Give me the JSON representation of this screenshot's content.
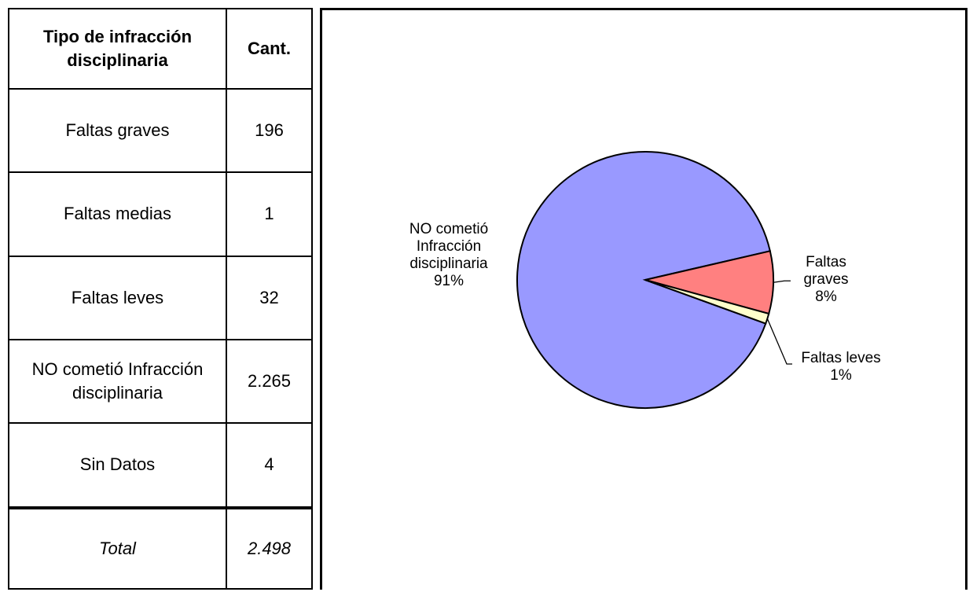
{
  "table": {
    "header": {
      "type": "Tipo de infracción disciplinaria",
      "count": "Cant."
    },
    "rows": [
      {
        "label": "Faltas graves",
        "value": "196"
      },
      {
        "label": "Faltas medias",
        "value": "1"
      },
      {
        "label": "Faltas leves",
        "value": "32"
      },
      {
        "label": "NO cometió Infracción disciplinaria",
        "value": "2.265"
      },
      {
        "label": "Sin Datos",
        "value": "4"
      }
    ],
    "total": {
      "label": "Total",
      "value": "2.498"
    }
  },
  "chart_data": {
    "type": "pie",
    "slices": [
      {
        "label": "NO cometió Infracción disciplinaria",
        "value": 2265,
        "percent": "91%",
        "color": "#9999FF"
      },
      {
        "label": "Faltas graves",
        "value": 196,
        "percent": "8%",
        "color": "#FF8080"
      },
      {
        "label": "Faltas leves",
        "value": 32,
        "percent": "1%",
        "color": "#FFFFCC"
      }
    ]
  }
}
